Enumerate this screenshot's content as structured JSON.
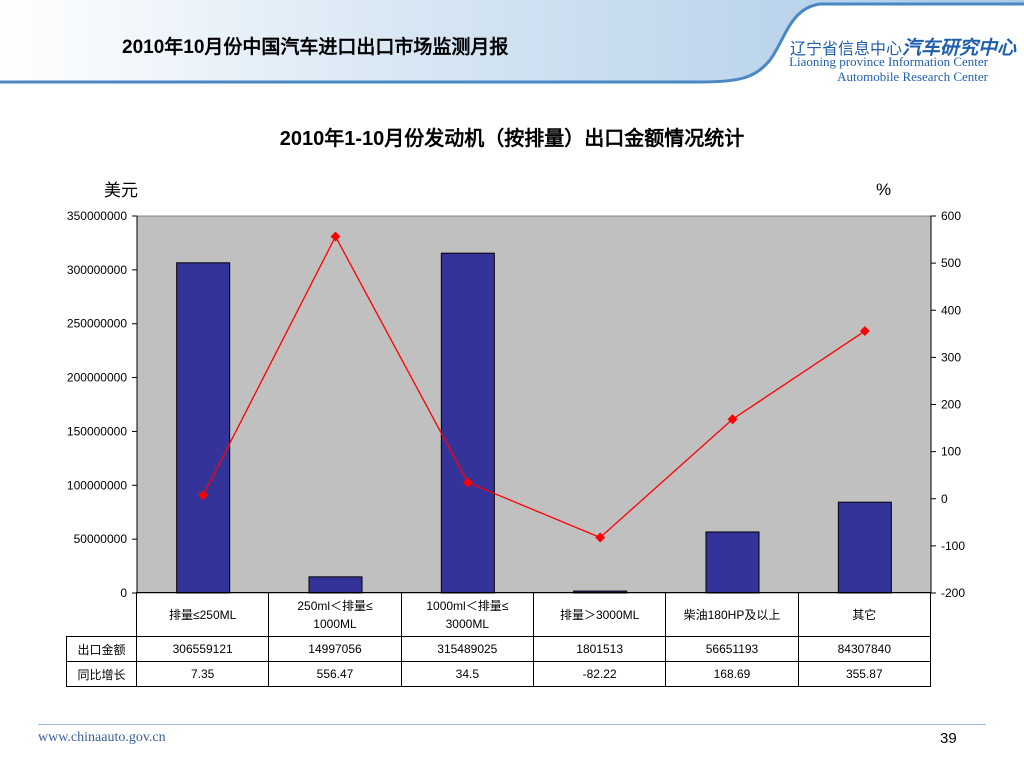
{
  "header": {
    "title": "2010年10月份中国汽车进口出口市场监测月报",
    "logo_cn_prefix": "辽宁省信息中心",
    "logo_cn_main": "汽车研究中心",
    "logo_en_1": "Liaoning province Information Center",
    "logo_en_2": "Automobile Research Center"
  },
  "footer": {
    "url": "www.chinaauto.gov.cn",
    "page": "39"
  },
  "chart_data": {
    "type": "bar",
    "title": "2010年1-10月份发动机（按排量）出口金额情况统计",
    "left_unit": "美元",
    "right_unit": "%",
    "categories": [
      "排量≤250ML",
      "250ml＜排量≤1000ML",
      "1000ml＜排量≤3000ML",
      "排量＞3000ML",
      "柴油180HP及以上",
      "其它"
    ],
    "category_lines": [
      [
        "排量≤250ML"
      ],
      [
        "250ml＜排量≤",
        "1000ML"
      ],
      [
        "1000ml＜排量≤",
        "3000ML"
      ],
      [
        "排量＞3000ML"
      ],
      [
        "柴油180HP及以上"
      ],
      [
        "其它"
      ]
    ],
    "series": [
      {
        "name": "出口金额",
        "type": "bar",
        "axis": "left",
        "color": "#333399",
        "values": [
          306559121,
          14997056,
          315489025,
          1801513,
          56651193,
          84307840
        ]
      },
      {
        "name": "同比增长",
        "type": "line",
        "axis": "right",
        "color": "#ff0000",
        "values": [
          7.35,
          556.47,
          34.5,
          -82.22,
          168.69,
          355.87
        ]
      }
    ],
    "value_labels": [
      [
        "306559121",
        "14997056",
        "315489025",
        "1801513",
        "56651193",
        "84307840"
      ],
      [
        "7.35",
        "556.47",
        "34.5",
        "-82.22",
        "168.69",
        "355.87"
      ]
    ],
    "ylim_left": [
      0,
      350000000
    ],
    "yticks_left": [
      "0",
      "50000000",
      "100000000",
      "150000000",
      "200000000",
      "250000000",
      "300000000",
      "350000000"
    ],
    "ylim_right": [
      -200,
      600
    ],
    "yticks_right": [
      "-200",
      "-100",
      "0",
      "100",
      "200",
      "300",
      "400",
      "500",
      "600"
    ],
    "plot_bg": "#c0c0c0",
    "grid": false,
    "legend": "table"
  }
}
